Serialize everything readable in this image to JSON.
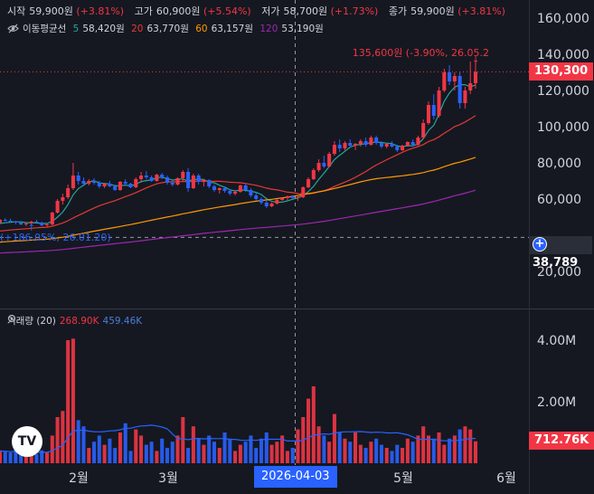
{
  "legend": {
    "open_label": "시작",
    "open": "59,900원",
    "open_pct": "(+3.81%)",
    "high_label": "고가",
    "high": "60,900원",
    "high_pct": "(+5.54%)",
    "low_label": "저가",
    "low": "58,700원",
    "low_pct": "(+1.73%)",
    "close_label": "종가",
    "close": "59,900원",
    "close_pct": "(+3.81%)"
  },
  "ma": {
    "title": "이동평균선",
    "p5": "5",
    "v5": "58,420원",
    "p20": "20",
    "v20": "63,770원",
    "p60": "60",
    "v60": "63,157원",
    "p120": "120",
    "v120": "53,190원"
  },
  "volume_legend": {
    "title": "거래량 (20)",
    "v1": "268.90K",
    "v2": "459.46K"
  },
  "annotations": {
    "high_marker": "135,600원 (-3.90%, 26.05.2",
    "low_marker": "(+186.05%, 26.01.20)"
  },
  "price_tag": "130,300",
  "crosshair_tag": "38,789",
  "volume_tag": "712.76K",
  "date_tag": "2026-04-03",
  "logo": "TV",
  "colors": {
    "up": "#f23645",
    "down": "#2962ff",
    "ma5": "#26a69a",
    "ma20": "#e53935",
    "ma60": "#ff9800",
    "ma120": "#9c27b0"
  },
  "chart_data": [
    {
      "type": "candlestick",
      "x_ticks": [
        "2월",
        "3월",
        "5월",
        "6월"
      ],
      "y_ticks": [
        "160,000",
        "140,000",
        "120,000",
        "100,000",
        "80,000",
        "60,000",
        "20,000"
      ],
      "ylim": [
        0,
        165000
      ],
      "last_close": 130300,
      "series": [
        {
          "name": "5",
          "values": []
        },
        {
          "name": "20",
          "values": []
        },
        {
          "name": "60",
          "values": []
        },
        {
          "name": "120",
          "values": []
        }
      ],
      "candles": [
        [
          47000,
          49000,
          46500,
          48500
        ],
        [
          48500,
          49500,
          47800,
          48000
        ],
        [
          48000,
          49200,
          47000,
          47500
        ],
        [
          47500,
          48000,
          46000,
          47000
        ],
        [
          47000,
          47500,
          45500,
          46000
        ],
        [
          46000,
          47000,
          45000,
          46500
        ],
        [
          46500,
          48000,
          46000,
          47500
        ],
        [
          47500,
          48500,
          46800,
          47000
        ],
        [
          47000,
          47500,
          45000,
          45500
        ],
        [
          45500,
          46500,
          44800,
          46000
        ],
        [
          46000,
          53000,
          45500,
          52500
        ],
        [
          52500,
          60000,
          52000,
          59000
        ],
        [
          59000,
          63000,
          57000,
          61000
        ],
        [
          61000,
          68000,
          60000,
          66000
        ],
        [
          66000,
          80000,
          65000,
          73000
        ],
        [
          73000,
          75000,
          68000,
          70000
        ],
        [
          70000,
          72000,
          67000,
          68500
        ],
        [
          68500,
          71000,
          67500,
          70000
        ],
        [
          70000,
          71500,
          68000,
          69000
        ],
        [
          69000,
          70000,
          66000,
          67000
        ],
        [
          67000,
          69000,
          66000,
          68500
        ],
        [
          68500,
          70000,
          66500,
          67000
        ],
        [
          67000,
          68000,
          64500,
          65000
        ],
        [
          65000,
          70000,
          64500,
          69500
        ],
        [
          69500,
          71000,
          67500,
          68500
        ],
        [
          68500,
          69000,
          66000,
          66500
        ],
        [
          66500,
          72000,
          66000,
          71000
        ],
        [
          71000,
          75000,
          69000,
          73000
        ],
        [
          73000,
          75500,
          71000,
          72000
        ],
        [
          72000,
          73000,
          69500,
          70000
        ],
        [
          70000,
          74000,
          69500,
          73500
        ],
        [
          73500,
          74500,
          71000,
          72000
        ],
        [
          72000,
          73000,
          68000,
          69000
        ],
        [
          69000,
          70000,
          67000,
          68000
        ],
        [
          68000,
          72000,
          67500,
          71500
        ],
        [
          71500,
          76000,
          70000,
          75000
        ],
        [
          75000,
          77000,
          64000,
          66000
        ],
        [
          66000,
          74000,
          65500,
          73000
        ],
        [
          73000,
          74000,
          68000,
          69500
        ],
        [
          69500,
          71000,
          67000,
          70500
        ],
        [
          70500,
          71000,
          66000,
          67000
        ],
        [
          67000,
          68000,
          64000,
          65000
        ],
        [
          65000,
          66500,
          63000,
          66000
        ],
        [
          66000,
          67000,
          63500,
          64500
        ],
        [
          64500,
          65500,
          62000,
          63000
        ],
        [
          63000,
          65000,
          62000,
          64000
        ],
        [
          64000,
          68000,
          63500,
          67500
        ],
        [
          67500,
          68500,
          64000,
          65000
        ],
        [
          65000,
          66000,
          61000,
          62000
        ],
        [
          62000,
          63500,
          59000,
          60000
        ],
        [
          60000,
          61000,
          57000,
          58000
        ],
        [
          58000,
          59500,
          55000,
          56000
        ],
        [
          56000,
          58000,
          55500,
          57500
        ],
        [
          57500,
          60000,
          57000,
          59500
        ],
        [
          59500,
          61000,
          59000,
          60500
        ],
        [
          60500,
          62000,
          59500,
          61500
        ],
        [
          61500,
          62000,
          60000,
          60500
        ],
        [
          60500,
          61500,
          59000,
          61000
        ],
        [
          61000,
          67000,
          60500,
          66500
        ],
        [
          66500,
          72000,
          66000,
          71000
        ],
        [
          71000,
          77000,
          70500,
          76000
        ],
        [
          76000,
          82000,
          75000,
          80000
        ],
        [
          80000,
          84000,
          77000,
          78000
        ],
        [
          78000,
          86000,
          77500,
          85000
        ],
        [
          85000,
          92000,
          84000,
          90000
        ],
        [
          90000,
          93000,
          86000,
          88000
        ],
        [
          88000,
          92000,
          87000,
          91000
        ],
        [
          91000,
          93000,
          88500,
          89500
        ],
        [
          89500,
          91000,
          87000,
          90500
        ],
        [
          90500,
          93000,
          89000,
          92000
        ],
        [
          92000,
          94000,
          89000,
          90000
        ],
        [
          90000,
          95000,
          89500,
          94000
        ],
        [
          94000,
          95000,
          90000,
          91000
        ],
        [
          91000,
          92000,
          88000,
          89000
        ],
        [
          89000,
          91000,
          88000,
          90500
        ],
        [
          90500,
          92000,
          88500,
          89000
        ],
        [
          89000,
          90000,
          86000,
          87000
        ],
        [
          87000,
          90000,
          86500,
          89500
        ],
        [
          89500,
          92000,
          89000,
          91500
        ],
        [
          91500,
          93000,
          89000,
          90000
        ],
        [
          90000,
          95000,
          89500,
          94000
        ],
        [
          94000,
          104000,
          93000,
          102000
        ],
        [
          102000,
          114000,
          101000,
          112000
        ],
        [
          112000,
          118000,
          104000,
          106000
        ],
        [
          106000,
          122000,
          105000,
          120000
        ],
        [
          120000,
          132000,
          119000,
          130000
        ],
        [
          130000,
          134000,
          123000,
          125000
        ],
        [
          125000,
          130000,
          120000,
          128000
        ],
        [
          128000,
          130000,
          110000,
          113000
        ],
        [
          113000,
          122000,
          110000,
          120000
        ],
        [
          120000,
          136000,
          118000,
          124000
        ],
        [
          124000,
          135600,
          121000,
          130300
        ]
      ],
      "volume": [
        400000,
        380000,
        350000,
        420000,
        300000,
        380000,
        260000,
        300000,
        420000,
        350000,
        900000,
        1500000,
        1700000,
        4000000,
        4050000,
        1400000,
        1200000,
        500000,
        700000,
        900000,
        600000,
        800000,
        500000,
        1000000,
        1300000,
        400000,
        1100000,
        900000,
        600000,
        700000,
        400000,
        800000,
        500000,
        700000,
        900000,
        1500000,
        500000,
        1200000,
        800000,
        600000,
        900000,
        700000,
        500000,
        1000000,
        800000,
        400000,
        600000,
        700000,
        900000,
        500000,
        800000,
        1000000,
        600000,
        700000,
        900000,
        400000,
        500000,
        1100000,
        1500000,
        2100000,
        2500000,
        1200000,
        900000,
        700000,
        1600000,
        1000000,
        800000,
        700000,
        1000000,
        600000,
        500000,
        700000,
        800000,
        600000,
        500000,
        400000,
        600000,
        500000,
        800000,
        700000,
        900000,
        1200000,
        900000,
        800000,
        1000000,
        600000,
        800000,
        900000,
        1100000,
        1200000,
        1100000,
        712760
      ]
    }
  ]
}
